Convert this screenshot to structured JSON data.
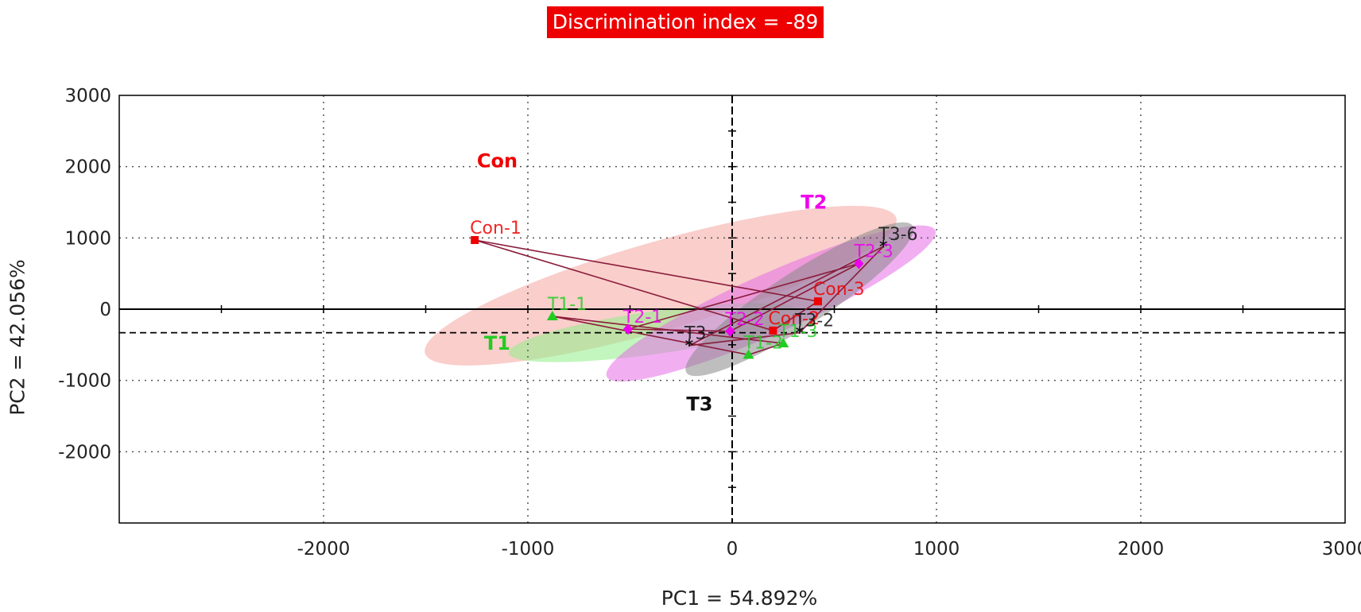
{
  "chart_data": {
    "type": "scatter",
    "title": "Discrimination index = -89",
    "xlabel": "PC1  =  54.892%",
    "ylabel": "PC2  =  42.056%",
    "xlim": [
      -3000,
      3000
    ],
    "ylim": [
      -3000,
      3000
    ],
    "xticks": [
      -2000,
      -1000,
      0,
      1000,
      2000,
      3000
    ],
    "yticks": [
      3000,
      2000,
      1000,
      0,
      -1000,
      -2000
    ],
    "grid": "dotted",
    "reference_line_y": -330,
    "groups": [
      {
        "name": "Con",
        "color": "#ee0000",
        "ellipse_color": "#f4a6a0",
        "label_at": [
          -1150,
          1990
        ],
        "points": [
          {
            "label": "Con-1",
            "x": -1260,
            "y": 970
          },
          {
            "label": "Con-2",
            "x": 200,
            "y": -300
          },
          {
            "label": "Con-3",
            "x": 420,
            "y": 110
          }
        ],
        "ellipse": {
          "cx": -350,
          "cy": 330,
          "rx": 1200,
          "ry": 620,
          "angle_deg": -16
        }
      },
      {
        "name": "T1",
        "color": "#22cc22",
        "ellipse_color": "#90ee88",
        "label_at": [
          -1150,
          -570
        ],
        "points": [
          {
            "label": "T1-1",
            "x": -880,
            "y": -100
          },
          {
            "label": "T1-2",
            "x": 80,
            "y": -640
          },
          {
            "label": "T1-3",
            "x": 250,
            "y": -480
          }
        ],
        "ellipse": {
          "cx": -380,
          "cy": -330,
          "rx": 720,
          "ry": 300,
          "angle_deg": -8
        }
      },
      {
        "name": "T2",
        "color": "#ee00ee",
        "ellipse_color": "#e66ee6",
        "label_at": [
          400,
          1410
        ],
        "points": [
          {
            "label": "T2-1",
            "x": -510,
            "y": -280
          },
          {
            "label": "T2-2",
            "x": -10,
            "y": -310
          },
          {
            "label": "T2-3",
            "x": 620,
            "y": 640
          }
        ],
        "ellipse": {
          "cx": 190,
          "cy": 80,
          "rx": 880,
          "ry": 420,
          "angle_deg": -24
        }
      },
      {
        "name": "T3",
        "color": "#111111",
        "ellipse_color": "#888888",
        "label_at": [
          -160,
          -1420
        ],
        "points": [
          {
            "label": "T3",
            "x": -210,
            "y": -510
          },
          {
            "label": "T3-2",
            "x": 330,
            "y": -330
          },
          {
            "label": "T3-6",
            "x": 740,
            "y": 880
          }
        ],
        "ellipse": {
          "cx": 330,
          "cy": 140,
          "rx": 660,
          "ry": 380,
          "angle_deg": -33
        }
      }
    ]
  }
}
